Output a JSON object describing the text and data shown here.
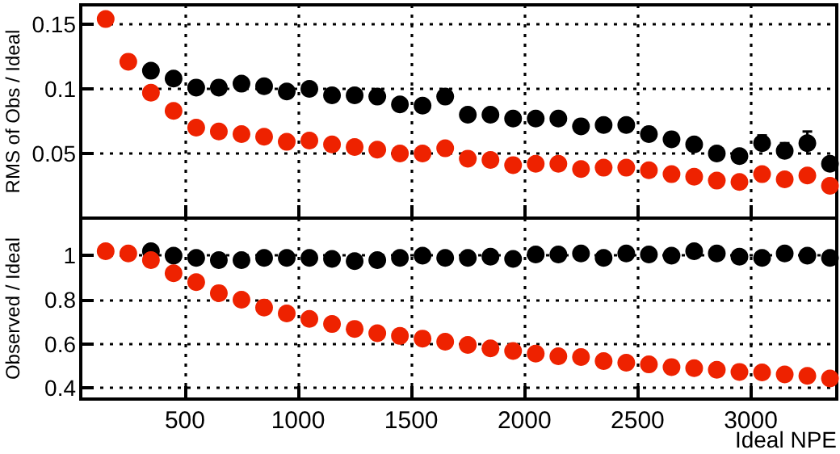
{
  "chart_data": [
    {
      "type": "scatter",
      "ylabel": "RMS of Obs / Ideal",
      "xlim": [
        40,
        3380
      ],
      "xticks": [
        500,
        1000,
        1500,
        2000,
        2500,
        3000
      ],
      "ylim": [
        0,
        0.165
      ],
      "yticks": [
        0.05,
        0.1,
        0.15
      ],
      "tick_labels": "y",
      "grid": true,
      "marker": "circle",
      "series": [
        {
          "color": "#000000",
          "x": [
            350,
            450,
            550,
            650,
            750,
            850,
            950,
            1050,
            1150,
            1250,
            1350,
            1450,
            1550,
            1650,
            1750,
            1850,
            1950,
            2050,
            2150,
            2250,
            2350,
            2450,
            2550,
            2650,
            2750,
            2850,
            2950,
            3050,
            3150,
            3250,
            3350
          ],
          "values": [
            0.114,
            0.108,
            0.101,
            0.101,
            0.104,
            0.102,
            0.098,
            0.1,
            0.095,
            0.095,
            0.094,
            0.088,
            0.087,
            0.094,
            0.08,
            0.08,
            0.077,
            0.077,
            0.077,
            0.071,
            0.072,
            0.072,
            0.065,
            0.061,
            0.057,
            0.05,
            0.048,
            0.058,
            0.052,
            0.058,
            0.042
          ],
          "errors": [
            null,
            null,
            null,
            null,
            null,
            null,
            null,
            null,
            null,
            null,
            null,
            null,
            null,
            null,
            null,
            null,
            null,
            null,
            null,
            null,
            null,
            0.004,
            0.005,
            null,
            null,
            null,
            null,
            0.006,
            0.006,
            0.009,
            0.004
          ]
        },
        {
          "color": "#ee2200",
          "x": [
            150,
            250,
            350,
            450,
            550,
            650,
            750,
            850,
            950,
            1050,
            1150,
            1250,
            1350,
            1450,
            1550,
            1650,
            1750,
            1850,
            1950,
            2050,
            2150,
            2250,
            2350,
            2450,
            2550,
            2650,
            2750,
            2850,
            2950,
            3050,
            3150,
            3250,
            3350
          ],
          "values": [
            0.154,
            0.121,
            0.097,
            0.083,
            0.07,
            0.067,
            0.065,
            0.063,
            0.059,
            0.06,
            0.057,
            0.055,
            0.053,
            0.05,
            0.05,
            0.054,
            0.046,
            0.045,
            0.041,
            0.042,
            0.042,
            0.038,
            0.039,
            0.039,
            0.037,
            0.034,
            0.032,
            0.029,
            0.028,
            0.034,
            0.03,
            0.033,
            0.025
          ]
        }
      ]
    },
    {
      "type": "scatter",
      "xlabel": "Ideal NPE",
      "ylabel": "Observed / Ideal",
      "xlim": [
        40,
        3380
      ],
      "xticks": [
        500,
        1000,
        1500,
        2000,
        2500,
        3000
      ],
      "ylim": [
        0.35,
        1.17
      ],
      "yticks": [
        0.4,
        0.6,
        0.8,
        1
      ],
      "grid": true,
      "marker": "circle",
      "series": [
        {
          "color": "#000000",
          "x": [
            350,
            450,
            550,
            650,
            750,
            850,
            950,
            1050,
            1150,
            1250,
            1350,
            1450,
            1550,
            1650,
            1750,
            1850,
            1950,
            2050,
            2150,
            2250,
            2350,
            2450,
            2550,
            2650,
            2750,
            2850,
            2950,
            3050,
            3150,
            3250,
            3350
          ],
          "values": [
            1.02,
            1.0,
            0.99,
            0.98,
            0.98,
            0.99,
            0.99,
            0.99,
            0.985,
            0.975,
            0.98,
            0.99,
            1.0,
            0.99,
            0.99,
            0.995,
            0.985,
            1.005,
            1.005,
            1.01,
            0.99,
            1.01,
            1.005,
            1.0,
            1.02,
            1.01,
            0.995,
            0.99,
            1.01,
            1.0,
            0.99
          ]
        },
        {
          "color": "#ee2200",
          "x": [
            150,
            250,
            350,
            450,
            550,
            650,
            750,
            850,
            950,
            1050,
            1150,
            1250,
            1350,
            1450,
            1550,
            1650,
            1750,
            1850,
            1950,
            2050,
            2150,
            2250,
            2350,
            2450,
            2550,
            2650,
            2750,
            2850,
            2950,
            3050,
            3150,
            3250,
            3350
          ],
          "values": [
            1.02,
            1.01,
            0.98,
            0.92,
            0.88,
            0.83,
            0.8,
            0.765,
            0.738,
            0.713,
            0.69,
            0.668,
            0.648,
            0.636,
            0.624,
            0.61,
            0.595,
            0.58,
            0.568,
            0.556,
            0.544,
            0.54,
            0.522,
            0.515,
            0.507,
            0.495,
            0.49,
            0.483,
            0.473,
            0.471,
            0.462,
            0.455,
            0.443
          ]
        }
      ]
    }
  ]
}
